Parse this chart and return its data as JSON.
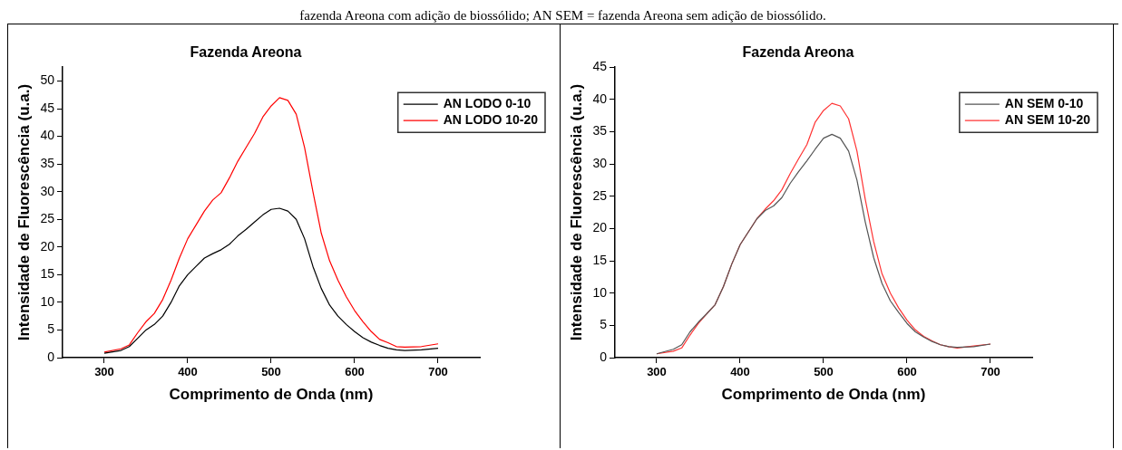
{
  "chart_data": [
    {
      "type": "line",
      "title": "Fazenda Areona",
      "xlabel": "Comprimento de Onda (nm)",
      "ylabel": "Intensidade de Fluorescência (u.a.)",
      "annotations": [
        "fazenda Areona com adição de biossólido; AN SEM = fazenda Areona sem adição de biossólido."
      ],
      "x": [
        300,
        320,
        330,
        340,
        350,
        360,
        370,
        380,
        390,
        400,
        410,
        420,
        430,
        440,
        450,
        460,
        470,
        480,
        490,
        500,
        510,
        520,
        530,
        540,
        550,
        560,
        570,
        580,
        590,
        600,
        610,
        620,
        630,
        640,
        650,
        660,
        680,
        700
      ],
      "xlim": [
        250,
        750
      ],
      "xticks": [
        300,
        400,
        500,
        600,
        700
      ],
      "ylim": [
        0,
        52.5
      ],
      "yticks": [
        0,
        5,
        10,
        15,
        20,
        25,
        30,
        35,
        40,
        45,
        50
      ],
      "grid": false,
      "legend": "top right",
      "line_style": "solid",
      "marker": "none",
      "series": [
        {
          "name": "AN LODO 0-10",
          "color": "#000000",
          "values": [
            0.8,
            1.3,
            2,
            3.5,
            5,
            6,
            7.5,
            10,
            13,
            15,
            16.5,
            18,
            18.8,
            19.5,
            20.5,
            22,
            23.2,
            24.5,
            25.8,
            26.8,
            27,
            26.5,
            25,
            21.5,
            16.5,
            12.5,
            9.5,
            7.5,
            6,
            4.7,
            3.6,
            2.8,
            2.2,
            1.7,
            1.4,
            1.3,
            1.4,
            1.7
          ]
        },
        {
          "name": "AN LODO 10-20",
          "color": "#ff0000",
          "values": [
            1,
            1.6,
            2.3,
            4.5,
            6.5,
            8,
            10.5,
            14,
            18,
            21.5,
            24,
            26.5,
            28.5,
            29.8,
            32.5,
            35.5,
            38,
            40.5,
            43.5,
            45.5,
            47,
            46.5,
            44,
            38,
            30,
            22.5,
            17.5,
            14,
            11,
            8.5,
            6.5,
            4.7,
            3.3,
            2.7,
            2,
            1.9,
            2,
            2.5
          ]
        }
      ]
    },
    {
      "type": "line",
      "title": "Fazenda Areona",
      "xlabel": "Comprimento de Onda (nm)",
      "ylabel": "Intensidade de Fluorescência (u.a.)",
      "x": [
        300,
        320,
        330,
        340,
        350,
        360,
        370,
        380,
        390,
        400,
        410,
        420,
        430,
        440,
        450,
        460,
        470,
        480,
        490,
        500,
        510,
        520,
        530,
        540,
        550,
        560,
        570,
        580,
        590,
        600,
        610,
        620,
        630,
        640,
        650,
        660,
        680,
        700
      ],
      "xlim": [
        250,
        750
      ],
      "xticks": [
        300,
        400,
        500,
        600,
        700
      ],
      "ylim": [
        0,
        45
      ],
      "yticks": [
        0,
        5,
        10,
        15,
        20,
        25,
        30,
        35,
        40,
        45
      ],
      "grid": false,
      "legend": "top right",
      "line_style": "solid",
      "marker": "none",
      "series": [
        {
          "name": "AN SEM 0-10",
          "color": "#555555",
          "values": [
            0.6,
            1.3,
            2,
            4,
            5.5,
            6.8,
            8.2,
            11,
            14.5,
            17.5,
            19.5,
            21.5,
            22.8,
            23.5,
            24.8,
            27,
            28.8,
            30.5,
            32.3,
            34,
            34.6,
            34,
            32,
            27.5,
            21,
            15.5,
            11.5,
            8.8,
            7,
            5.3,
            4,
            3.2,
            2.5,
            2,
            1.7,
            1.6,
            1.7,
            2.1
          ]
        },
        {
          "name": "AN SEM 10-20",
          "color": "#ff3333",
          "values": [
            0.6,
            1,
            1.5,
            3.5,
            5.3,
            6.8,
            8.2,
            11,
            14.5,
            17.5,
            19.5,
            21.5,
            23,
            24.3,
            26,
            28.5,
            30.8,
            33,
            36.5,
            38.3,
            39.4,
            39,
            37,
            32,
            24.5,
            18,
            13,
            10,
            7.7,
            5.8,
            4.3,
            3.3,
            2.6,
            2,
            1.7,
            1.5,
            1.8,
            2.1
          ]
        }
      ]
    }
  ]
}
